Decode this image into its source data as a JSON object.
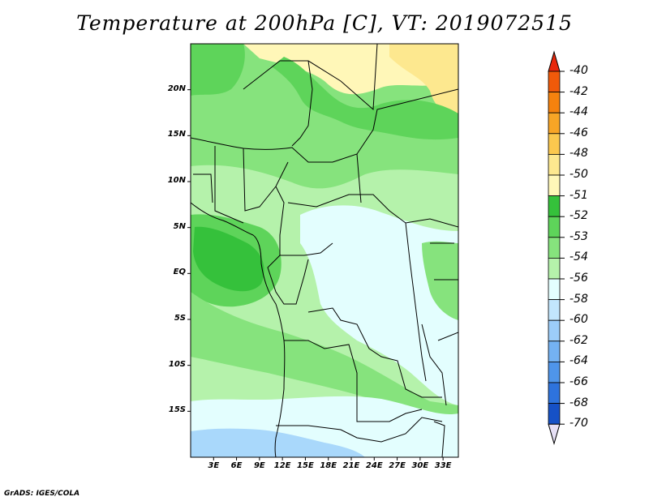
{
  "title": "Temperature at 200hPa [C], VT: 2019072515",
  "credit": "GrADS: IGES/COLA",
  "map": {
    "lon_range": [
      0,
      35
    ],
    "lat_range": [
      -20,
      25
    ],
    "lat_ticks": [
      {
        "value": 20,
        "label": "20N"
      },
      {
        "value": 15,
        "label": "15N"
      },
      {
        "value": 10,
        "label": "10N"
      },
      {
        "value": 5,
        "label": "5N"
      },
      {
        "value": 0,
        "label": "EQ"
      },
      {
        "value": -5,
        "label": "5S"
      },
      {
        "value": -10,
        "label": "10S"
      },
      {
        "value": -15,
        "label": "15S"
      }
    ],
    "lon_ticks": [
      {
        "value": 3,
        "label": "3E"
      },
      {
        "value": 6,
        "label": "6E"
      },
      {
        "value": 9,
        "label": "9E"
      },
      {
        "value": 12,
        "label": "12E"
      },
      {
        "value": 15,
        "label": "15E"
      },
      {
        "value": 18,
        "label": "18E"
      },
      {
        "value": 21,
        "label": "21E"
      },
      {
        "value": 24,
        "label": "24E"
      },
      {
        "value": 27,
        "label": "27E"
      },
      {
        "value": 30,
        "label": "30E"
      },
      {
        "value": 33,
        "label": "33E"
      }
    ]
  },
  "colorbar": {
    "labels": [
      "-40",
      "-42",
      "-44",
      "-46",
      "-48",
      "-50",
      "-51",
      "-52",
      "-53",
      "-54",
      "-56",
      "-58",
      "-60",
      "-62",
      "-64",
      "-66",
      "-68",
      "-70"
    ],
    "colors": [
      "#e8280c",
      "#f05a0a",
      "#f5820e",
      "#f8a526",
      "#fbc84e",
      "#fde88f",
      "#fff7b8",
      "#35c13b",
      "#5ed45a",
      "#86e37d",
      "#b5f2ab",
      "#e3fefe",
      "#c2e6fd",
      "#9ccdf9",
      "#74b2f2",
      "#4f95ea",
      "#2e73dd",
      "#1651c6",
      "#0c2f9c",
      "#081a6d",
      "#e6e0f5"
    ],
    "top_triangle_color": "#e8280c",
    "bottom_triangle_color": "#e6e0f5"
  }
}
